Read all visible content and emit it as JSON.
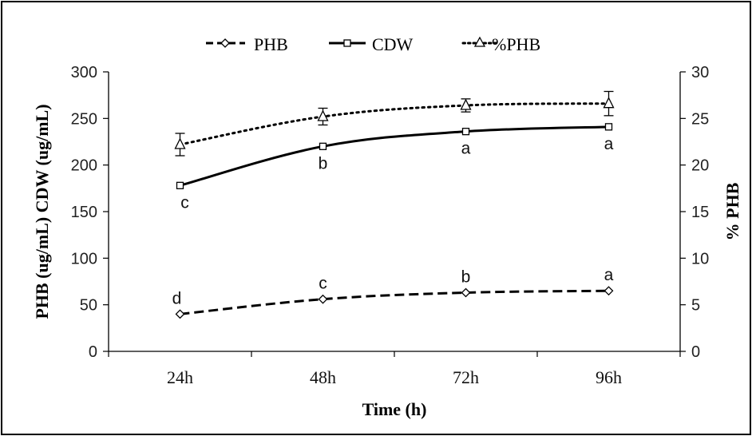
{
  "chart_data": {
    "type": "line",
    "categories": [
      "24h",
      "48h",
      "72h",
      "96h"
    ],
    "xlabel": "Time (h)",
    "ylabel_left": "PHB (ug/mL) CDW (ug/mL)",
    "ylabel_right": "% PHB",
    "ylim_left": [
      0,
      300
    ],
    "ylim_right": [
      0,
      30
    ],
    "yticks_left": [
      "0",
      "50",
      "100",
      "150",
      "200",
      "250",
      "300"
    ],
    "yticks_right": [
      "0",
      "5",
      "10",
      "15",
      "20",
      "25",
      "30"
    ],
    "legend_position": "top-center",
    "series": [
      {
        "name": "PHB",
        "axis": "left",
        "style": "dashed",
        "marker": "diamond",
        "values": [
          40,
          56,
          63,
          65
        ],
        "letters": [
          "d",
          "c",
          "b",
          "a"
        ]
      },
      {
        "name": "CDW",
        "axis": "left",
        "style": "solid",
        "marker": "square",
        "values": [
          178,
          220,
          236,
          241
        ],
        "letters": [
          "c",
          "b",
          "a",
          "a"
        ]
      },
      {
        "name": "%PHB",
        "axis": "right",
        "style": "dotted",
        "marker": "triangle",
        "values": [
          22.2,
          25.2,
          26.4,
          26.6
        ],
        "errors": [
          1.2,
          0.9,
          0.7,
          1.3
        ]
      }
    ]
  }
}
